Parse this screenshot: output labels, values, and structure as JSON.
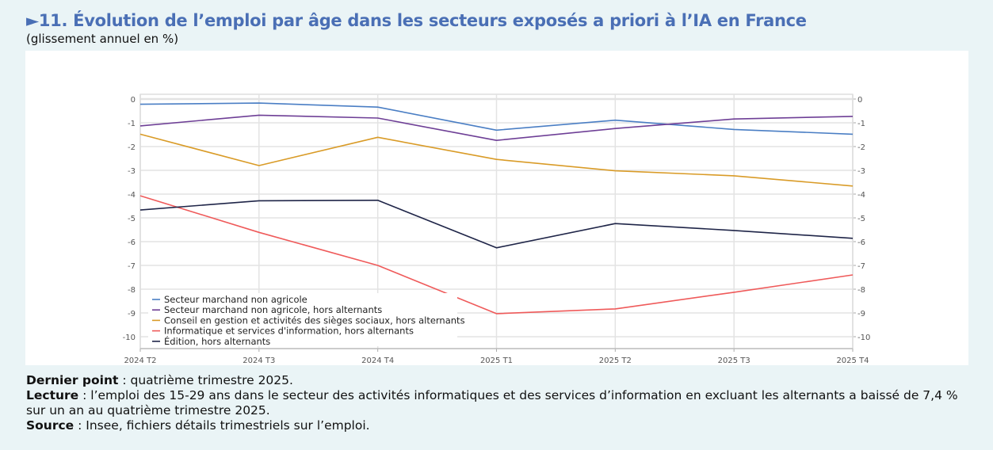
{
  "title": "►11. Évolution de l’emploi par âge dans les secteurs exposés a priori à l’IA en France",
  "subtitle": "(glissement annuel en %)",
  "notes": {
    "dernier_point_label": "Dernier point",
    "dernier_point_text": " : quatrième trimestre 2025.",
    "lecture_label": "Lecture",
    "lecture_text": " : l’emploi des 15-29 ans dans le secteur des activités informatiques et des services d’information en excluant les alternants a baissé de 7,4 % sur un an au quatrième trimestre 2025.",
    "source_label": "Source",
    "source_text": " : Insee, fichiers détails trimestriels sur l’emploi."
  },
  "chart_data": {
    "type": "line",
    "categories": [
      "2024 T2",
      "2024 T3",
      "2024 T4",
      "2025 T1",
      "2025 T2",
      "2025 T3",
      "2025 T4"
    ],
    "ylim": [
      -10.5,
      0.2
    ],
    "yticks": [
      0,
      -1,
      -2,
      -3,
      -4,
      -5,
      -6,
      -7,
      -8,
      -9,
      -10
    ],
    "y_axis_both_sides": true,
    "grid": true,
    "legend_position": "bottom-left",
    "series": [
      {
        "name": "Secteur marchand non agricole",
        "color": "#4a7ec4",
        "values": [
          -0.22,
          -0.17,
          -0.34,
          -1.31,
          -0.89,
          -1.28,
          -1.48
        ]
      },
      {
        "name": "Secteur marchand non agricole, hors alternants",
        "color": "#6e3f96",
        "values": [
          -1.13,
          -0.68,
          -0.8,
          -1.74,
          -1.24,
          -0.84,
          -0.73
        ]
      },
      {
        "name": "Conseil en gestion et activités des sièges sociaux, hors alternants",
        "color": "#d99b27",
        "values": [
          -1.48,
          -2.8,
          -1.61,
          -2.54,
          -3.02,
          -3.23,
          -3.66
        ]
      },
      {
        "name": "Informatique et services d'information, hors alternants",
        "color": "#ef5a5a",
        "values": [
          -4.07,
          -5.61,
          -7.0,
          -9.03,
          -8.83,
          -8.13,
          -7.4
        ]
      },
      {
        "name": "Édition, hors alternants",
        "color": "#1f2548",
        "values": [
          -4.67,
          -4.28,
          -4.26,
          -6.26,
          -5.24,
          -5.53,
          -5.86
        ]
      }
    ]
  }
}
